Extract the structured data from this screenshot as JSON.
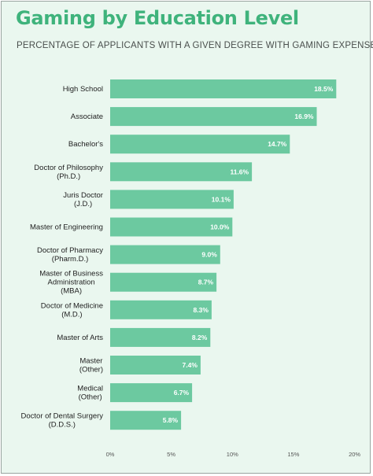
{
  "chart_data": {
    "type": "bar",
    "orientation": "horizontal",
    "title": "Gaming by Education Level",
    "subtitle": "PERCENTAGE OF APPLICANTS WITH A GIVEN DEGREE WITH GAMING EXPENSES",
    "categories": [
      [
        "High School"
      ],
      [
        "Associate"
      ],
      [
        "Bachelor's"
      ],
      [
        "Doctor of Philosophy",
        "(Ph.D.)"
      ],
      [
        "Juris Doctor",
        "(J.D.)"
      ],
      [
        "Master of Engineering"
      ],
      [
        "Doctor of Pharmacy",
        "(Pharm.D.)"
      ],
      [
        "Master of Business",
        "Administration",
        "(MBA)"
      ],
      [
        "Doctor of Medicine",
        "(M.D.)"
      ],
      [
        "Master of Arts"
      ],
      [
        "Master",
        "(Other)"
      ],
      [
        "Medical",
        "(Other)"
      ],
      [
        "Doctor of Dental Surgery",
        "(D.D.S.)"
      ]
    ],
    "values": [
      18.5,
      16.9,
      14.7,
      11.6,
      10.1,
      10.0,
      9.0,
      8.7,
      8.3,
      8.2,
      7.4,
      6.7,
      5.8
    ],
    "value_labels": [
      "18.5%",
      "16.9%",
      "14.7%",
      "11.6%",
      "10.1%",
      "10.0%",
      "9.0%",
      "8.7%",
      "8.3%",
      "8.2%",
      "7.4%",
      "6.7%",
      "5.8%"
    ],
    "x_ticks": [
      0,
      5,
      10,
      15,
      20
    ],
    "x_tick_labels": [
      "0%",
      "5%",
      "10%",
      "15%",
      "20%"
    ],
    "xlim": [
      0,
      20
    ],
    "grid": false,
    "bar_color": "#6cc9a0",
    "title_color": "#3fb37c",
    "background_color": "#eaf7ef"
  }
}
